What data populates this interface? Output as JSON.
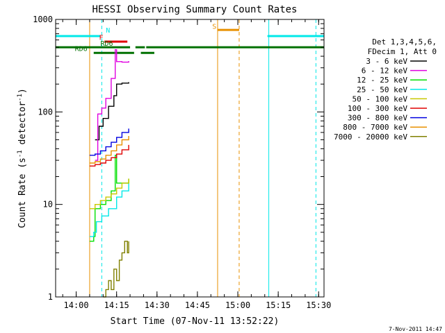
{
  "chart_data": {
    "type": "line",
    "title": "HESSI Observing Summary Count Rates",
    "xlabel": "Start Time (07-Nov-11 13:52:22)",
    "ylabel": "Count Rate (s",
    "ylabel_sup1": "-1",
    "ylabel_mid": " detector",
    "ylabel_sup2": "-1",
    "ylabel_end": ")",
    "yscale": "log",
    "xlim": [
      "13:52:22",
      "15:32:00"
    ],
    "ylim": [
      1,
      1000
    ],
    "x_ticks": [
      "14:00",
      "14:15",
      "14:30",
      "14:45",
      "15:00",
      "15:15",
      "15:30"
    ],
    "y_ticks": [
      "1",
      "10",
      "100",
      "1000"
    ],
    "legend_header": [
      "Det 1,3,4,5,6,",
      "FDecim 1, Att 0"
    ],
    "legend_position": "right",
    "timestamp": "7-Nov-2011 14:47",
    "series": [
      {
        "name": "3 - 6 keV",
        "color": "#000000",
        "x": [
          "14:07:00",
          "14:08:30",
          "14:10:00",
          "14:12:00",
          "14:14:00",
          "14:15:00",
          "14:17:00",
          "14:19:30"
        ],
        "y": [
          50,
          70,
          85,
          115,
          150,
          200,
          205,
          210
        ]
      },
      {
        "name": "6 - 12 keV",
        "color": "#e000e0",
        "x": [
          "14:07:00",
          "14:08:00",
          "14:09:30",
          "14:11:00",
          "14:13:00",
          "14:14:30",
          "14:15:00",
          "14:17:00",
          "14:19:30"
        ],
        "y": [
          30,
          95,
          110,
          140,
          230,
          470,
          350,
          345,
          355
        ]
      },
      {
        "name": "12 - 25 keV",
        "color": "#00e000",
        "x": [
          "14:05:00",
          "14:06:30",
          "14:07:00",
          "14:09:00",
          "14:11:00",
          "14:13:00",
          "14:14:30",
          "14:15:00",
          "14:16:30",
          "14:19:30"
        ],
        "y": [
          4,
          4.5,
          9,
          10,
          11,
          14,
          34,
          17,
          17,
          19
        ]
      },
      {
        "name": "25 - 50 keV",
        "color": "#00e8e8",
        "x": [
          "14:05:00",
          "14:06:30",
          "14:07:30",
          "14:09:30",
          "14:12:00",
          "14:15:00",
          "14:17:00",
          "14:19:30"
        ],
        "y": [
          4.5,
          5,
          6.5,
          7.5,
          9,
          12,
          14,
          17
        ]
      },
      {
        "name": "50 - 100 keV",
        "color": "#c8c800",
        "x": [
          "14:05:00",
          "14:07:00",
          "14:09:00",
          "14:11:00",
          "14:13:00",
          "14:15:00",
          "14:17:00",
          "14:19:30"
        ],
        "y": [
          9,
          10,
          11,
          12,
          13,
          15,
          17,
          19
        ]
      },
      {
        "name": "100 - 300 keV",
        "color": "#e00000",
        "x": [
          "14:05:00",
          "14:07:00",
          "14:09:00",
          "14:11:00",
          "14:13:00",
          "14:15:00",
          "14:17:00",
          "14:19:30"
        ],
        "y": [
          26,
          27,
          28,
          30,
          32,
          35,
          39,
          44
        ]
      },
      {
        "name": "300 - 800 keV",
        "color": "#0000e0",
        "x": [
          "14:05:00",
          "14:07:00",
          "14:09:00",
          "14:11:00",
          "14:13:00",
          "14:15:00",
          "14:17:00",
          "14:19:30"
        ],
        "y": [
          34,
          35,
          38,
          42,
          47,
          53,
          60,
          66
        ]
      },
      {
        "name": "800 - 7000 keV",
        "color": "#e89000",
        "x": [
          "14:05:00",
          "14:07:00",
          "14:09:00",
          "14:11:00",
          "14:13:00",
          "14:15:00",
          "14:17:00",
          "14:19:30"
        ],
        "y": [
          28,
          29,
          31,
          34,
          38,
          44,
          50,
          55
        ]
      },
      {
        "name": "7000 - 20000 keV",
        "color": "#808000",
        "x": [
          "14:10:00",
          "14:11:00",
          "14:12:00",
          "14:13:00",
          "14:14:00",
          "14:15:00",
          "14:16:00",
          "14:17:00",
          "14:18:00",
          "14:19:00",
          "14:19:30"
        ],
        "y": [
          1,
          1.2,
          1.5,
          1.2,
          2,
          1.5,
          2.5,
          3,
          4,
          3,
          4
        ]
      }
    ],
    "flag_labels": {
      "night": "N",
      "flare": "F",
      "rd6_upper": "RD6",
      "rd6_lower": "RD6",
      "saa": "S"
    },
    "flags": [
      {
        "label": "N",
        "color": "#00e8e8",
        "start": "13:52:22",
        "end": "14:09:00",
        "level": 660
      },
      {
        "label": "N",
        "color": "#00e8e8",
        "start": "15:11:00",
        "end": "15:32:00",
        "level": 660
      },
      {
        "label": "F",
        "color": "#e00000",
        "start": "14:10:30",
        "end": "14:19:00",
        "level": 575
      },
      {
        "label": "RD6",
        "color": "#007000",
        "start": "13:52:22",
        "end": "14:20:00",
        "level": 500
      },
      {
        "label": "RD6",
        "color": "#007000",
        "start": "14:22:00",
        "end": "14:25:30",
        "level": 500
      },
      {
        "label": "RD6",
        "color": "#007000",
        "start": "14:26:00",
        "end": "15:32:00",
        "level": 500
      },
      {
        "label": "RD6",
        "color": "#007000",
        "start": "14:06:30",
        "end": "14:21:30",
        "level": 435
      },
      {
        "label": "RD6",
        "color": "#007000",
        "start": "14:24:00",
        "end": "14:29:00",
        "level": 435
      },
      {
        "label": "S",
        "color": "#e89000",
        "start": "14:52:30",
        "end": "15:00:30",
        "level": 770
      }
    ],
    "vlines": [
      {
        "at": "13:52:22",
        "color": "#00e8e8",
        "style": "solid"
      },
      {
        "at": "14:09:30",
        "color": "#00e8e8",
        "style": "dashed"
      },
      {
        "at": "15:11:30",
        "color": "#00e8e8",
        "style": "solid"
      },
      {
        "at": "15:29:00",
        "color": "#00e8e8",
        "style": "dashed"
      },
      {
        "at": "14:52:30",
        "color": "#e89000",
        "style": "solid"
      },
      {
        "at": "15:00:30",
        "color": "#e89000",
        "style": "dashed"
      },
      {
        "at": "14:05:00",
        "color": "#e89000",
        "style": "solid"
      }
    ]
  }
}
